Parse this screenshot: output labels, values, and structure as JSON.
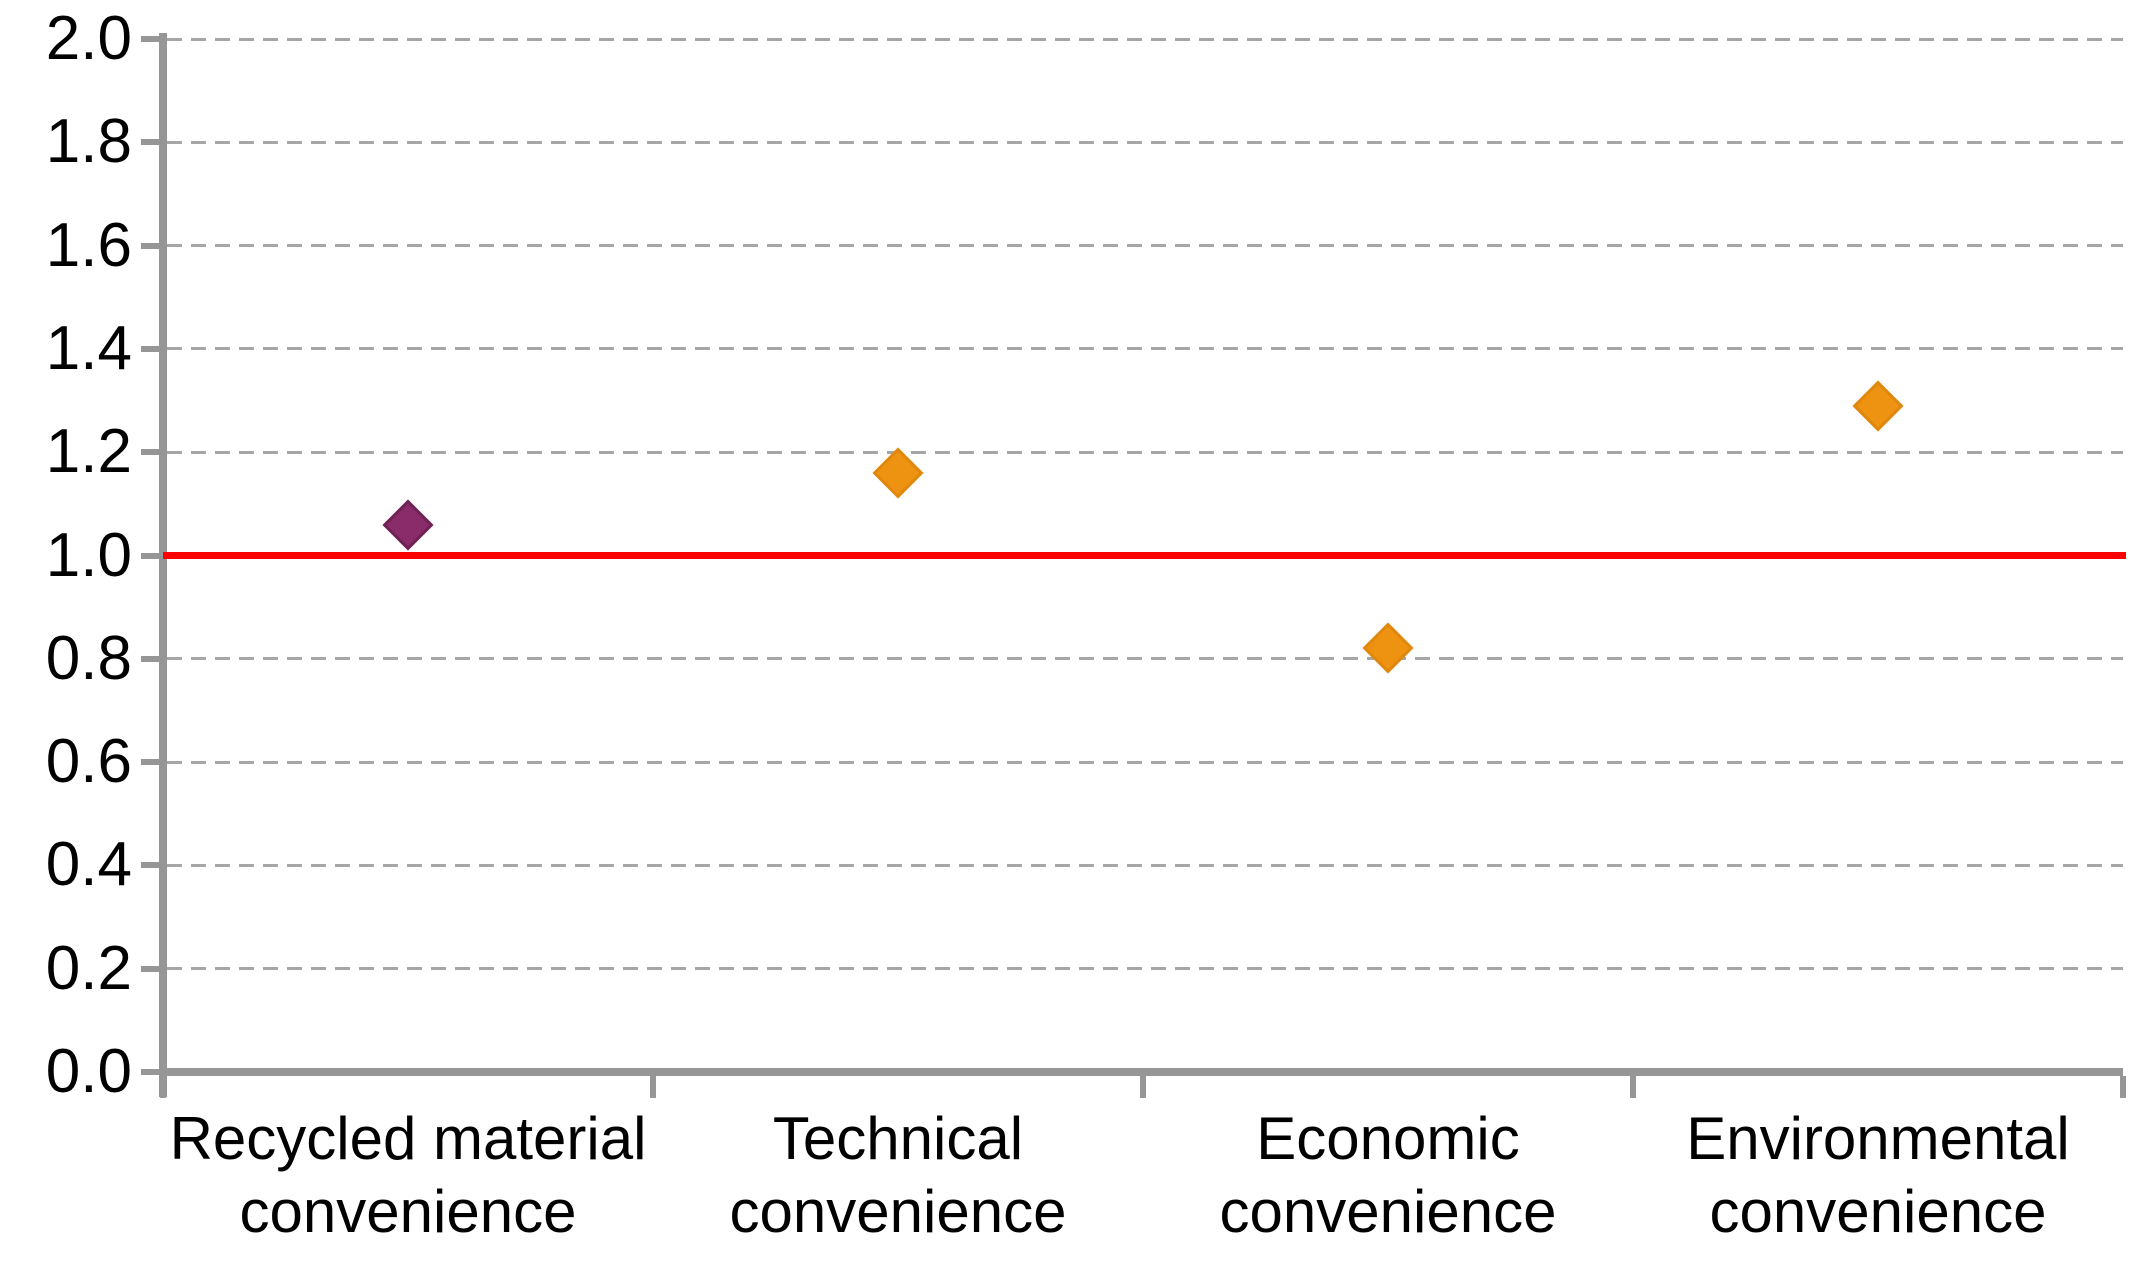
{
  "chart_data": {
    "type": "scatter",
    "title": "",
    "categories": [
      "Recycled material\nconvenience",
      "Technical\nconvenience",
      "Economic\nconvenience",
      "Environmental\nconvenience"
    ],
    "series": [
      {
        "marker": "diamond",
        "values": [
          1.06,
          1.16,
          0.82,
          1.29
        ],
        "point_fill_colors": [
          "#8A2C6A",
          "#EE9311",
          "#EE9311",
          "#EE9311"
        ],
        "point_border_colors": [
          "#6E2255",
          "#E0880D",
          "#E0880D",
          "#E0880D"
        ]
      }
    ],
    "reference_line": {
      "value": 1.0,
      "color": "#FF0000"
    },
    "xlabel": "",
    "ylabel": "",
    "ylim": [
      0,
      2
    ],
    "ytick_step": 0.2,
    "ytick_labels": [
      "0.0",
      "0.2",
      "0.4",
      "0.6",
      "0.8",
      "1.0",
      "1.2",
      "1.4",
      "1.6",
      "1.8",
      "2.0"
    ],
    "grid": {
      "horizontal": true,
      "style": "dashed"
    },
    "legend": "none"
  },
  "style": {
    "axis_color": "#969696",
    "gridline_color": "#A6A6A6",
    "text_color": "#000000",
    "background_color": "#FFFFFF"
  }
}
